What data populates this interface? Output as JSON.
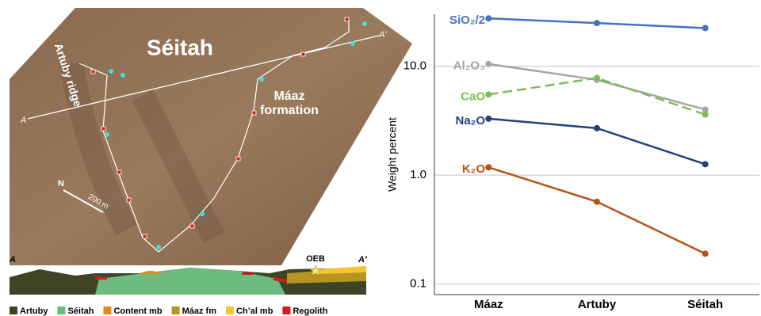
{
  "map": {
    "title": "Séitah",
    "ridge_label": "Artuby ridge",
    "formation_label": [
      "Máaz",
      "formation"
    ],
    "transect_start": "A",
    "transect_end": "A′",
    "north": "N",
    "scale": "200 m"
  },
  "cross_section": {
    "start": "A",
    "end": "A′",
    "site": "OEB"
  },
  "legend": [
    {
      "name": "Artuby",
      "color": "#3d4526"
    },
    {
      "name": "Séitah",
      "color": "#6dbb7e"
    },
    {
      "name": "Content mb",
      "color": "#e08a1e"
    },
    {
      "name": "Máaz fm",
      "color": "#b89422"
    },
    {
      "name": "Ch’al mb",
      "color": "#f2c531"
    },
    {
      "name": "Regolith",
      "color": "#cc1f1f"
    }
  ],
  "chart_data": {
    "type": "line",
    "y_label": "Weight percent",
    "categories": [
      "Máaz",
      "Artuby",
      "Séitah"
    ],
    "series": [
      {
        "name": "SiO₂/2",
        "color": "#4472c4",
        "values": [
          27.5,
          24.9,
          22.4
        ]
      },
      {
        "name": "Al₂O₃",
        "color": "#a6a6a6",
        "values": [
          10.5,
          7.5,
          4.0
        ]
      },
      {
        "name": "CaO",
        "color": "#7cbd5a",
        "dashed": true,
        "values": [
          5.5,
          7.8,
          3.6
        ]
      },
      {
        "name": "Na₂O",
        "color": "#24427c",
        "values": [
          3.3,
          2.7,
          1.26
        ]
      },
      {
        "name": "K₂O",
        "color": "#b5541a",
        "values": [
          1.18,
          0.57,
          0.19
        ]
      }
    ],
    "log_scale": true,
    "ylim": [
      0.08,
      30
    ],
    "yticks": [
      0.1,
      {
        "value": 1,
        "label": "1.0"
      },
      {
        "value": 10,
        "label": "10.0"
      }
    ],
    "grid": true
  }
}
